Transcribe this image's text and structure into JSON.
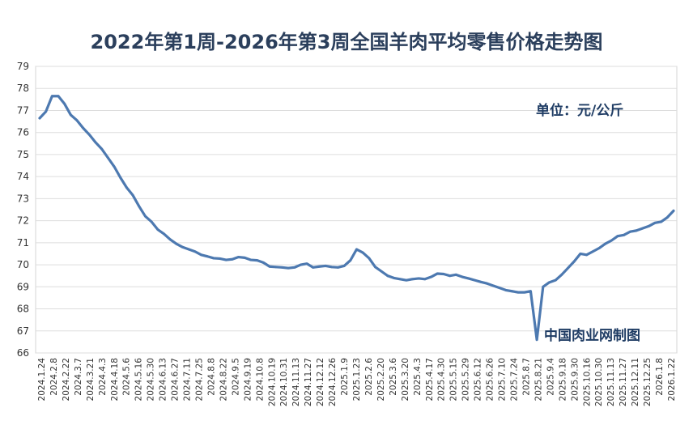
{
  "chart_data": {
    "type": "line",
    "title": "2022年第1周-2026年第3周全国羊肉平均零售价格走势图",
    "unit": "单位：元/公斤",
    "source_note": "中国肉业网制图",
    "xlabel": "",
    "ylabel": "",
    "ylim": [
      66,
      79
    ],
    "yticks": [
      66,
      67,
      68,
      69,
      70,
      71,
      72,
      73,
      74,
      75,
      76,
      77,
      78,
      79
    ],
    "grid": true,
    "legend": "none",
    "line_color": "#4d79b0",
    "x_tick_labels": [
      "2024.1.24",
      "2024.2.8",
      "2024.2.22",
      "2024.3.7",
      "2024.3.21",
      "2024.4.3",
      "2024.4.18",
      "2024.5.6",
      "2024.5.16",
      "2024.5.30",
      "2024.6.13",
      "2024.6.27",
      "2024.7.11",
      "2024.7.25",
      "2024.8.8",
      "2024.8.22",
      "2024.9.5",
      "2024.9.19",
      "2024.10.8",
      "2024.10.19",
      "2024.10.31",
      "2024.11.13",
      "2024.11.27",
      "2024.12.12",
      "2024.12.26",
      "2025.1.9",
      "2025.1.23",
      "2025.2.6",
      "2025.2.20",
      "2025.3.6",
      "2025.3.20",
      "2025.4.3",
      "2025.4.17",
      "2025.4.30",
      "2025.5.15",
      "2025.5.29",
      "2025.6.12",
      "2025.6.26",
      "2025.7.10",
      "2025.7.24",
      "2025.8.7",
      "2025.8.21",
      "2025.9.4",
      "2025.9.18",
      "2025.9.30",
      "2025.10.16",
      "2025.10.30",
      "2025.11.13",
      "2025.11.27",
      "2025.12.11",
      "2025.12.25",
      "2026.1.8",
      "2026.1.22"
    ],
    "values": [
      76.65,
      76.95,
      77.65,
      77.65,
      77.3,
      76.8,
      76.55,
      76.2,
      75.9,
      75.55,
      75.25,
      74.85,
      74.45,
      73.95,
      73.5,
      73.15,
      72.65,
      72.2,
      71.95,
      71.6,
      71.4,
      71.15,
      70.95,
      70.8,
      70.7,
      70.6,
      70.45,
      70.38,
      70.3,
      70.28,
      70.22,
      70.25,
      70.35,
      70.32,
      70.22,
      70.2,
      70.1,
      69.92,
      69.9,
      69.88,
      69.85,
      69.88,
      70.0,
      70.05,
      69.88,
      69.92,
      69.95,
      69.9,
      69.88,
      69.95,
      70.2,
      70.7,
      70.55,
      70.3,
      69.9,
      69.7,
      69.5,
      69.4,
      69.35,
      69.3,
      69.35,
      69.38,
      69.35,
      69.45,
      69.6,
      69.58,
      69.5,
      69.55,
      69.45,
      69.38,
      69.3,
      69.22,
      69.15,
      69.05,
      68.95,
      68.85,
      68.8,
      68.75,
      68.75,
      68.8,
      66.6,
      69.0,
      69.2,
      69.3,
      69.55,
      69.85,
      70.15,
      70.5,
      70.45,
      70.6,
      70.75,
      70.95,
      71.1,
      71.3,
      71.35,
      71.5,
      71.55,
      71.65,
      71.75,
      71.9,
      71.95,
      72.15,
      72.45
    ]
  }
}
